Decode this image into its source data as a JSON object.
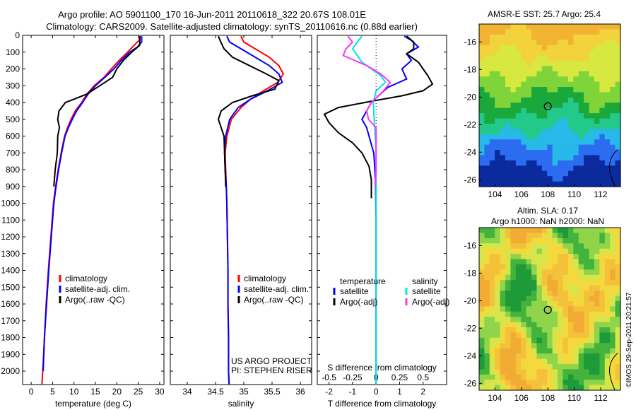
{
  "figure": {
    "title_line1": "Argo profile: AO 5901100_170 16-Jun-2011 20110618_322 20.67S 108.01E",
    "title_line2": "Climatology: CARS2009. Satellite-adjusted climatology: synTS_20110616.nc (0.88d earlier)",
    "side_stamp": "©IMOS 29-Sep-2011 20:21:57",
    "colors": {
      "climatology": "#ff0000",
      "satellite": "#0000ff",
      "argo": "#000000",
      "sal_satellite": "#00e5e5",
      "sal_argo": "#ff33ff"
    }
  },
  "chart_data": [
    {
      "type": "line",
      "panel": "temperature",
      "xlabel": "temperature (deg C)",
      "ylabel": "",
      "xlim": [
        -2,
        31
      ],
      "ylim": [
        2080,
        0
      ],
      "xticks": [
        "0",
        "5",
        "10",
        "15",
        "20",
        "25",
        "30"
      ],
      "yticks": [
        "0",
        "100",
        "200",
        "300",
        "400",
        "500",
        "600",
        "700",
        "800",
        "900",
        "1000",
        "1100",
        "1200",
        "1300",
        "1400",
        "1500",
        "1600",
        "1700",
        "1800",
        "1900",
        "2000"
      ],
      "legend": {
        "position": "lower-center",
        "entries": [
          "climatology",
          "satellite-adj. clim.",
          "Argo(..raw -QC)"
        ]
      },
      "series": [
        {
          "name": "climatology",
          "color": "#ff0000",
          "points": [
            [
              25.3,
              5
            ],
            [
              25.2,
              30
            ],
            [
              24,
              60
            ],
            [
              22.5,
              100
            ],
            [
              20.5,
              150
            ],
            [
              18.7,
              200
            ],
            [
              17,
              250
            ],
            [
              14.7,
              300
            ],
            [
              13,
              350
            ],
            [
              11.8,
              400
            ],
            [
              10.3,
              450
            ],
            [
              9.3,
              500
            ],
            [
              8.5,
              550
            ],
            [
              7.8,
              600
            ],
            [
              7,
              700
            ],
            [
              6.3,
              800
            ],
            [
              5.7,
              900
            ],
            [
              5.2,
              1000
            ],
            [
              4.6,
              1200
            ],
            [
              4,
              1400
            ],
            [
              3.5,
              1600
            ],
            [
              3.1,
              1800
            ],
            [
              2.7,
              2000
            ],
            [
              2.5,
              2080
            ]
          ]
        },
        {
          "name": "satellite-adj. clim.",
          "color": "#0000ff",
          "points": [
            [
              25.8,
              5
            ],
            [
              25.8,
              40
            ],
            [
              24.8,
              70
            ],
            [
              23,
              100
            ],
            [
              21,
              150
            ],
            [
              19.3,
              200
            ],
            [
              17.2,
              250
            ],
            [
              15,
              300
            ],
            [
              13.3,
              350
            ],
            [
              12,
              400
            ],
            [
              10.6,
              450
            ],
            [
              9.6,
              500
            ],
            [
              8.7,
              550
            ],
            [
              7.9,
              600
            ],
            [
              7.1,
              700
            ],
            [
              6.4,
              800
            ],
            [
              5.8,
              900
            ],
            [
              5.3,
              1000
            ],
            [
              4.7,
              1200
            ],
            [
              4.1,
              1400
            ],
            [
              3.6,
              1600
            ],
            [
              3.1,
              1800
            ],
            [
              2.8,
              2000
            ]
          ]
        },
        {
          "name": "Argo(..raw -QC)",
          "color": "#000000",
          "points": [
            [
              25.4,
              5
            ],
            [
              25.3,
              60
            ],
            [
              23.5,
              100
            ],
            [
              21.5,
              150
            ],
            [
              20,
              200
            ],
            [
              19,
              250
            ],
            [
              16,
              300
            ],
            [
              13,
              350
            ],
            [
              10,
              380
            ],
            [
              8,
              400
            ],
            [
              6.5,
              450
            ],
            [
              6.2,
              500
            ],
            [
              6.6,
              550
            ],
            [
              6.2,
              600
            ],
            [
              6.1,
              700
            ],
            [
              5.6,
              800
            ],
            [
              5.3,
              900
            ]
          ]
        }
      ]
    },
    {
      "type": "line",
      "panel": "salinity",
      "xlabel": "salinity",
      "xlim": [
        33.7,
        36.2
      ],
      "ylim": [
        2080,
        0
      ],
      "xticks": [
        "34",
        "34.5",
        "35",
        "35.5",
        "36"
      ],
      "legend": {
        "position": "lower-center",
        "entries": [
          "climatology",
          "satellite-adj. clim.",
          "Argo(..raw -QC)"
        ]
      },
      "annotation": [
        "US ARGO PROJECT",
        "PI: STEPHEN RISER"
      ],
      "series": [
        {
          "name": "climatology",
          "color": "#ff0000",
          "points": [
            [
              34.95,
              5
            ],
            [
              35,
              40
            ],
            [
              35.2,
              80
            ],
            [
              35.45,
              130
            ],
            [
              35.62,
              180
            ],
            [
              35.7,
              230
            ],
            [
              35.6,
              280
            ],
            [
              35.35,
              330
            ],
            [
              35.12,
              380
            ],
            [
              34.95,
              430
            ],
            [
              34.78,
              500
            ],
            [
              34.7,
              600
            ],
            [
              34.67,
              700
            ],
            [
              34.68,
              800
            ],
            [
              34.69,
              900
            ],
            [
              34.7,
              1000
            ],
            [
              34.71,
              1200
            ],
            [
              34.72,
              1400
            ],
            [
              34.72,
              1600
            ],
            [
              34.73,
              1800
            ],
            [
              34.73,
              2000
            ],
            [
              34.74,
              2080
            ]
          ]
        },
        {
          "name": "satellite-adj. clim.",
          "color": "#0000ff",
          "points": [
            [
              34.7,
              5
            ],
            [
              34.75,
              40
            ],
            [
              34.95,
              80
            ],
            [
              35.2,
              130
            ],
            [
              35.45,
              180
            ],
            [
              35.62,
              230
            ],
            [
              35.68,
              280
            ],
            [
              35.42,
              330
            ],
            [
              35.12,
              380
            ],
            [
              34.9,
              430
            ],
            [
              34.75,
              500
            ],
            [
              34.68,
              600
            ],
            [
              34.66,
              700
            ],
            [
              34.67,
              800
            ],
            [
              34.69,
              900
            ],
            [
              34.7,
              1000
            ],
            [
              34.71,
              1200
            ],
            [
              34.72,
              1400
            ],
            [
              34.72,
              1600
            ],
            [
              34.73,
              1800
            ],
            [
              34.73,
              2000
            ],
            [
              34.74,
              2080
            ]
          ]
        },
        {
          "name": "Argo(..raw -QC)",
          "color": "#000000",
          "points": [
            [
              34.55,
              5
            ],
            [
              34.58,
              30
            ],
            [
              34.65,
              80
            ],
            [
              34.8,
              130
            ],
            [
              35.1,
              180
            ],
            [
              35.4,
              230
            ],
            [
              35.62,
              270
            ],
            [
              35.55,
              320
            ],
            [
              35.15,
              360
            ],
            [
              34.8,
              400
            ],
            [
              34.6,
              450
            ],
            [
              34.55,
              500
            ],
            [
              34.6,
              550
            ],
            [
              34.65,
              600
            ],
            [
              34.66,
              700
            ],
            [
              34.67,
              800
            ],
            [
              34.68,
              900
            ]
          ]
        }
      ]
    },
    {
      "type": "line",
      "panel": "difference",
      "xlabel": "T difference from climatology",
      "xlabel2": "S difference from climatology",
      "xlim": [
        -2.5,
        3
      ],
      "ylim": [
        2080,
        0
      ],
      "xticks": [
        "-2",
        "-1",
        "0",
        "1",
        "2"
      ],
      "xticks_top": [
        "-0.5",
        "-0.25",
        "0",
        "0.25",
        "0.5"
      ],
      "legend": {
        "position": "lower-center",
        "temperature_title": "temperature",
        "salinity_title": "salinity",
        "entries": [
          "satellite",
          "Argo(-adj)",
          "satellite",
          "Argo(-adj)"
        ]
      },
      "series": [
        {
          "name": "satellite",
          "group": "temperature",
          "color": "#0000ff",
          "points": [
            [
              1.2,
              5
            ],
            [
              1.5,
              30
            ],
            [
              1.8,
              70
            ],
            [
              1.3,
              110
            ],
            [
              1.5,
              150
            ],
            [
              1.1,
              200
            ],
            [
              1.3,
              260
            ],
            [
              0.5,
              310
            ],
            [
              0.1,
              360
            ],
            [
              -0.2,
              400
            ],
            [
              -0.4,
              450
            ],
            [
              -0.6,
              500
            ],
            [
              -0.4,
              550
            ],
            [
              -0.3,
              600
            ],
            [
              -0.1,
              700
            ],
            [
              -0.05,
              800
            ],
            [
              -0.02,
              900
            ],
            [
              0,
              1100
            ],
            [
              0,
              1300
            ],
            [
              0,
              1500
            ],
            [
              0,
              1700
            ],
            [
              0,
              1900
            ],
            [
              0,
              2080
            ]
          ]
        },
        {
          "name": "Argo(-adj)",
          "group": "temperature",
          "color": "#000000",
          "points": [
            [
              1.3,
              5
            ],
            [
              1.6,
              40
            ],
            [
              1.6,
              80
            ],
            [
              1.3,
              110
            ],
            [
              1.8,
              160
            ],
            [
              2,
              200
            ],
            [
              2.2,
              240
            ],
            [
              2.4,
              290
            ],
            [
              2,
              330
            ],
            [
              1.1,
              360
            ],
            [
              -0.1,
              390
            ],
            [
              -1.6,
              430
            ],
            [
              -2.2,
              470
            ],
            [
              -2,
              520
            ],
            [
              -1.6,
              580
            ],
            [
              -1,
              640
            ],
            [
              -0.6,
              700
            ],
            [
              -0.3,
              780
            ],
            [
              -0.2,
              860
            ],
            [
              -0.2,
              940
            ],
            [
              -0.2,
              970
            ]
          ]
        },
        {
          "name": "satellite",
          "group": "salinity",
          "color": "#00e5e5",
          "points": [
            [
              -0.15,
              5
            ],
            [
              -0.2,
              40
            ],
            [
              -0.25,
              80
            ],
            [
              -0.2,
              120
            ],
            [
              -0.15,
              160
            ],
            [
              -0.05,
              200
            ],
            [
              0.05,
              240
            ],
            [
              0.1,
              280
            ],
            [
              0,
              330
            ],
            [
              -0.03,
              400
            ],
            [
              -0.02,
              500
            ],
            [
              -0.01,
              600
            ],
            [
              0,
              700
            ],
            [
              0,
              900
            ],
            [
              0,
              1200
            ],
            [
              0,
              1500
            ],
            [
              0,
              1800
            ],
            [
              0,
              2080
            ]
          ]
        },
        {
          "name": "Argo(-adj)",
          "group": "salinity",
          "color": "#ff33ff",
          "points": [
            [
              -0.3,
              5
            ],
            [
              -0.25,
              40
            ],
            [
              -0.32,
              80
            ],
            [
              -0.35,
              120
            ],
            [
              -0.1,
              180
            ],
            [
              0.05,
              230
            ],
            [
              0.15,
              280
            ],
            [
              0.08,
              330
            ],
            [
              -0.05,
              400
            ],
            [
              -0.1,
              450
            ],
            [
              -0.08,
              500
            ],
            [
              0,
              550
            ],
            [
              0,
              600
            ],
            [
              0,
              700
            ],
            [
              0,
              800
            ],
            [
              -0.01,
              900
            ]
          ]
        }
      ]
    },
    {
      "type": "heatmap",
      "panel": "sst_map",
      "title": "AMSR-E SST: 25.7 Argo: 25.4",
      "xlim": [
        102.8,
        113.5
      ],
      "ylim": [
        -26.5,
        -14.7
      ],
      "xticks": [
        "104",
        "106",
        "108",
        "110",
        "112"
      ],
      "yticks": [
        "-16",
        "-18",
        "-20",
        "-22",
        "-24",
        "-26"
      ],
      "marker": [
        108.0,
        -20.67
      ]
    },
    {
      "type": "heatmap",
      "panel": "sla_map",
      "title": "Altim. SLA: 0.17",
      "subtitle": "Argo h1000: NaN h2000: NaN",
      "xlim": [
        102.8,
        113.5
      ],
      "ylim": [
        -26.5,
        -14.7
      ],
      "xticks": [
        "104",
        "106",
        "108",
        "110",
        "112"
      ],
      "yticks": [
        "-16",
        "-18",
        "-20",
        "-22",
        "-24",
        "-26"
      ],
      "marker": [
        108.0,
        -20.67
      ]
    }
  ]
}
